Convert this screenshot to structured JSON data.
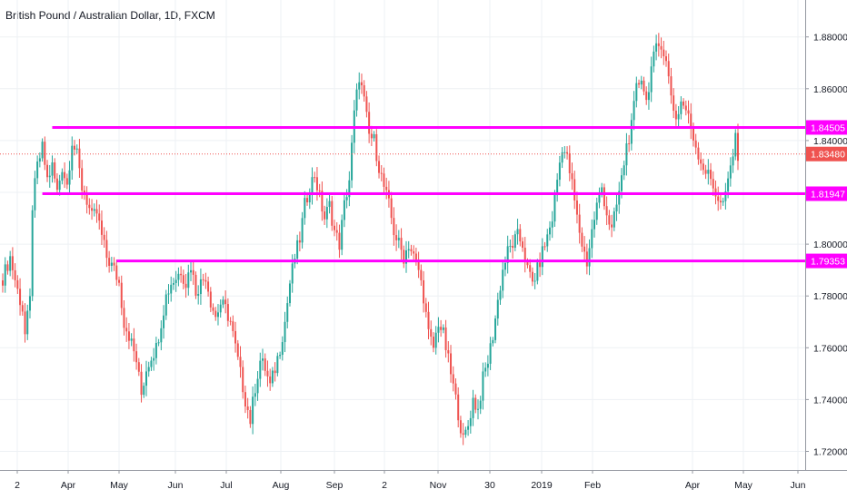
{
  "title": "British Pound / Australian Dollar, 1D, FXCM",
  "colors": {
    "up": "#26a69a",
    "down": "#ef5350",
    "level": "#ff00ff",
    "price_line": "#ef5350",
    "grid": "#eef1f4",
    "axis_text": "#131722"
  },
  "chart_data": {
    "type": "candlestick",
    "title": "British Pound / Australian Dollar, 1D, FXCM",
    "y_ticks": [
      "1.88000",
      "1.86000",
      "1.84000",
      "1.82000",
      "1.80000",
      "1.78000",
      "1.76000",
      "1.74000",
      "1.72000"
    ],
    "x_ticks": [
      "2",
      "Apr",
      "May",
      "Jun",
      "Jul",
      "Aug",
      "Sep",
      "2",
      "Nov",
      "30",
      "2019",
      "Feb",
      "Apr",
      "May",
      "Jun"
    ],
    "ylim": [
      1.713,
      1.889
    ],
    "last_price": "1.83480",
    "levels": [
      {
        "value": "1.84505",
        "x_start_index": 10
      },
      {
        "value": "1.81947",
        "x_start_index": 8
      },
      {
        "value": "1.79353",
        "x_start_index": 23
      }
    ],
    "anchors": [
      [
        0,
        1.787
      ],
      [
        3,
        1.795
      ],
      [
        6,
        1.782
      ],
      [
        8,
        1.775
      ],
      [
        9,
        1.765
      ],
      [
        11,
        1.778
      ],
      [
        12,
        1.815
      ],
      [
        14,
        1.83
      ],
      [
        16,
        1.837
      ],
      [
        18,
        1.825
      ],
      [
        20,
        1.83
      ],
      [
        22,
        1.82
      ],
      [
        24,
        1.83
      ],
      [
        26,
        1.823
      ],
      [
        28,
        1.84
      ],
      [
        30,
        1.834
      ],
      [
        32,
        1.822
      ],
      [
        34,
        1.817
      ],
      [
        36,
        1.81
      ],
      [
        38,
        1.812
      ],
      [
        40,
        1.803
      ],
      [
        42,
        1.795
      ],
      [
        45,
        1.79
      ],
      [
        47,
        1.785
      ],
      [
        49,
        1.77
      ],
      [
        51,
        1.765
      ],
      [
        54,
        1.755
      ],
      [
        56,
        1.742
      ],
      [
        58,
        1.752
      ],
      [
        60,
        1.757
      ],
      [
        62,
        1.76
      ],
      [
        64,
        1.77
      ],
      [
        66,
        1.78
      ],
      [
        68,
        1.785
      ],
      [
        70,
        1.787
      ],
      [
        72,
        1.79
      ],
      [
        74,
        1.785
      ],
      [
        76,
        1.792
      ],
      [
        78,
        1.782
      ],
      [
        80,
        1.785
      ],
      [
        82,
        1.788
      ],
      [
        84,
        1.778
      ],
      [
        86,
        1.772
      ],
      [
        88,
        1.777
      ],
      [
        90,
        1.775
      ],
      [
        92,
        1.77
      ],
      [
        94,
        1.76
      ],
      [
        96,
        1.75
      ],
      [
        98,
        1.74
      ],
      [
        100,
        1.732
      ],
      [
        102,
        1.745
      ],
      [
        104,
        1.755
      ],
      [
        106,
        1.752
      ],
      [
        108,
        1.745
      ],
      [
        110,
        1.752
      ],
      [
        112,
        1.76
      ],
      [
        114,
        1.77
      ],
      [
        116,
        1.785
      ],
      [
        118,
        1.795
      ],
      [
        120,
        1.802
      ],
      [
        122,
        1.815
      ],
      [
        124,
        1.822
      ],
      [
        126,
        1.827
      ],
      [
        128,
        1.818
      ],
      [
        130,
        1.81
      ],
      [
        132,
        1.815
      ],
      [
        134,
        1.805
      ],
      [
        136,
        1.8
      ],
      [
        138,
        1.815
      ],
      [
        140,
        1.825
      ],
      [
        142,
        1.85
      ],
      [
        144,
        1.865
      ],
      [
        146,
        1.855
      ],
      [
        148,
        1.842
      ],
      [
        150,
        1.84
      ],
      [
        152,
        1.83
      ],
      [
        154,
        1.822
      ],
      [
        156,
        1.815
      ],
      [
        158,
        1.805
      ],
      [
        160,
        1.8
      ],
      [
        162,
        1.795
      ],
      [
        164,
        1.8
      ],
      [
        166,
        1.795
      ],
      [
        168,
        1.79
      ],
      [
        170,
        1.78
      ],
      [
        172,
        1.765
      ],
      [
        174,
        1.76
      ],
      [
        176,
        1.77
      ],
      [
        178,
        1.765
      ],
      [
        180,
        1.755
      ],
      [
        182,
        1.745
      ],
      [
        184,
        1.735
      ],
      [
        186,
        1.724
      ],
      [
        188,
        1.73
      ],
      [
        190,
        1.74
      ],
      [
        192,
        1.736
      ],
      [
        194,
        1.748
      ],
      [
        196,
        1.755
      ],
      [
        198,
        1.765
      ],
      [
        200,
        1.778
      ],
      [
        202,
        1.79
      ],
      [
        204,
        1.797
      ],
      [
        206,
        1.8
      ],
      [
        208,
        1.803
      ],
      [
        210,
        1.8
      ],
      [
        212,
        1.79
      ],
      [
        214,
        1.785
      ],
      [
        216,
        1.79
      ],
      [
        218,
        1.797
      ],
      [
        220,
        1.803
      ],
      [
        222,
        1.81
      ],
      [
        224,
        1.825
      ],
      [
        226,
        1.838
      ],
      [
        228,
        1.833
      ],
      [
        230,
        1.823
      ],
      [
        232,
        1.81
      ],
      [
        234,
        1.8
      ],
      [
        236,
        1.793
      ],
      [
        238,
        1.805
      ],
      [
        240,
        1.815
      ],
      [
        242,
        1.822
      ],
      [
        244,
        1.812
      ],
      [
        246,
        1.805
      ],
      [
        248,
        1.815
      ],
      [
        250,
        1.825
      ],
      [
        252,
        1.838
      ],
      [
        254,
        1.845
      ],
      [
        256,
        1.86
      ],
      [
        258,
        1.865
      ],
      [
        260,
        1.855
      ],
      [
        262,
        1.868
      ],
      [
        264,
        1.875
      ],
      [
        266,
        1.878
      ],
      [
        268,
        1.87
      ],
      [
        270,
        1.858
      ],
      [
        272,
        1.848
      ],
      [
        274,
        1.855
      ],
      [
        276,
        1.852
      ],
      [
        278,
        1.845
      ],
      [
        280,
        1.838
      ],
      [
        282,
        1.832
      ],
      [
        284,
        1.828
      ],
      [
        286,
        1.825
      ],
      [
        288,
        1.82
      ],
      [
        290,
        1.815
      ],
      [
        292,
        1.818
      ],
      [
        294,
        1.83
      ],
      [
        296,
        1.84
      ],
      [
        297,
        1.835
      ]
    ]
  }
}
